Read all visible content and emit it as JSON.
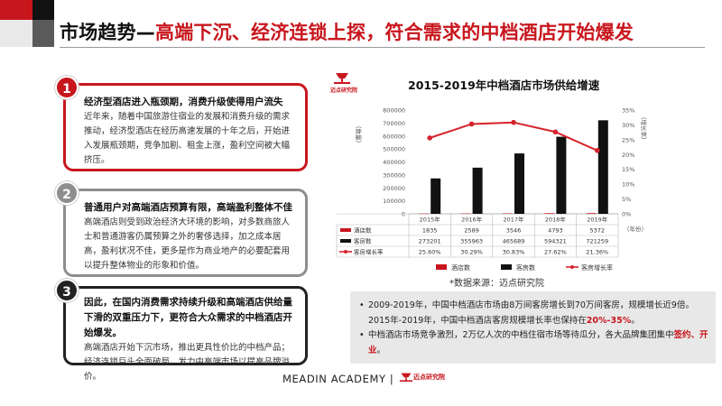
{
  "header": {
    "title_black": "市场趋势—",
    "title_red": "高端下沉、经济连锁上探，符合需求的中档酒店开始爆发"
  },
  "cards": [
    {
      "number": "1",
      "heading": "经济型酒店进入瓶颈期，消费升级使得用户流失",
      "body": "近年来，随着中国旅游住宿业的发展和消费升级的需求推动，经济型酒店在经历高速发展的十年之后，开始进入发展瓶颈期，竞争加剧、租金上涨，盈利空间被大幅挤压。"
    },
    {
      "number": "2",
      "heading": "普通用户对高端酒店预算有限，高端盈利整体不佳",
      "body": "高端酒店则受到政治经济大环境的影响，对多数商旅人士和普通游客仍属预算之外的奢侈选择，加之成本居高，盈利状况不佳，更多是作为商业地产的必要配套用以提升整体物业的形象和价值。"
    },
    {
      "number": "3",
      "heading": "因此，在国内消费需求持续升级和高端酒店供给量下滑的双重压力下，更符合大众需求的中档酒店开始爆发。",
      "body": "高端酒店开始下沉市场，推出更具性价比的中档产品；经济连锁巨头全面破局，发力中高端市场以提高品牌溢价。"
    }
  ],
  "chart_data": {
    "type": "bar",
    "title": "2015-2019年中档酒店市场供给增速",
    "logo_text": "迈点研究院",
    "categories": [
      "2015年",
      "2016年",
      "2017年",
      "2018年",
      "2019年"
    ],
    "series": [
      {
        "name": "酒店数",
        "values": [
          1835,
          2589,
          3546,
          4793,
          5372
        ],
        "color": "#c8161d",
        "axis": "left"
      },
      {
        "name": "客房数",
        "values": [
          273201,
          355963,
          465689,
          594321,
          721259
        ],
        "color": "#111111",
        "axis": "left"
      },
      {
        "name": "客房增长率",
        "values": [
          25.6,
          30.29,
          30.83,
          27.62,
          21.36
        ],
        "type": "line",
        "color": "#d6222a",
        "axis": "right"
      }
    ],
    "table_values": [
      [
        "1835",
        "2589",
        "3546",
        "4793",
        "5372"
      ],
      [
        "273201",
        "355963",
        "465689",
        "594321",
        "721259"
      ],
      [
        "25.60%",
        "30.29%",
        "30.83%",
        "27.62%",
        "21.36%"
      ]
    ],
    "ylabel_left": "（数量）",
    "ylabel_right": "（增长率）",
    "xlabel_right": "（年份）",
    "yticks_left": [
      "0",
      "100000",
      "200000",
      "300000",
      "400000",
      "500000",
      "600000",
      "700000",
      "800000"
    ],
    "yticks_right": [
      "0%",
      "5%",
      "10%",
      "15%",
      "20%",
      "25%",
      "30%",
      "35%"
    ],
    "ylim_left": [
      0,
      800000
    ],
    "ylim_right": [
      0,
      35
    ],
    "legend_position": "bottom",
    "grid": false
  },
  "source": "*数据来源：迈点研究院",
  "conclusion": {
    "item1_line1": "2009-2019年，中国中档酒店市场由8万间客房增长到70万间客房，规模增长近9倍。",
    "item1_line2_pre": "2015年-2019年，中国中档酒店客房规模增长率也保持在",
    "item1_line2_hl": "20%-35%",
    "item1_line2_post": "。",
    "item2_pre": "中档酒店市场竞争激烈，2万亿人次的中档住宿市场等待瓜分，各大品牌集团集中",
    "item2_hl": "签约、开业",
    "item2_post": "。"
  },
  "footer": {
    "text": "MEADIN ACADEMY |",
    "logo_text": "迈点研究院"
  },
  "colors": {
    "brand_red": "#c8161d",
    "dark": "#111111",
    "grey_border": "#8e8e8e"
  }
}
